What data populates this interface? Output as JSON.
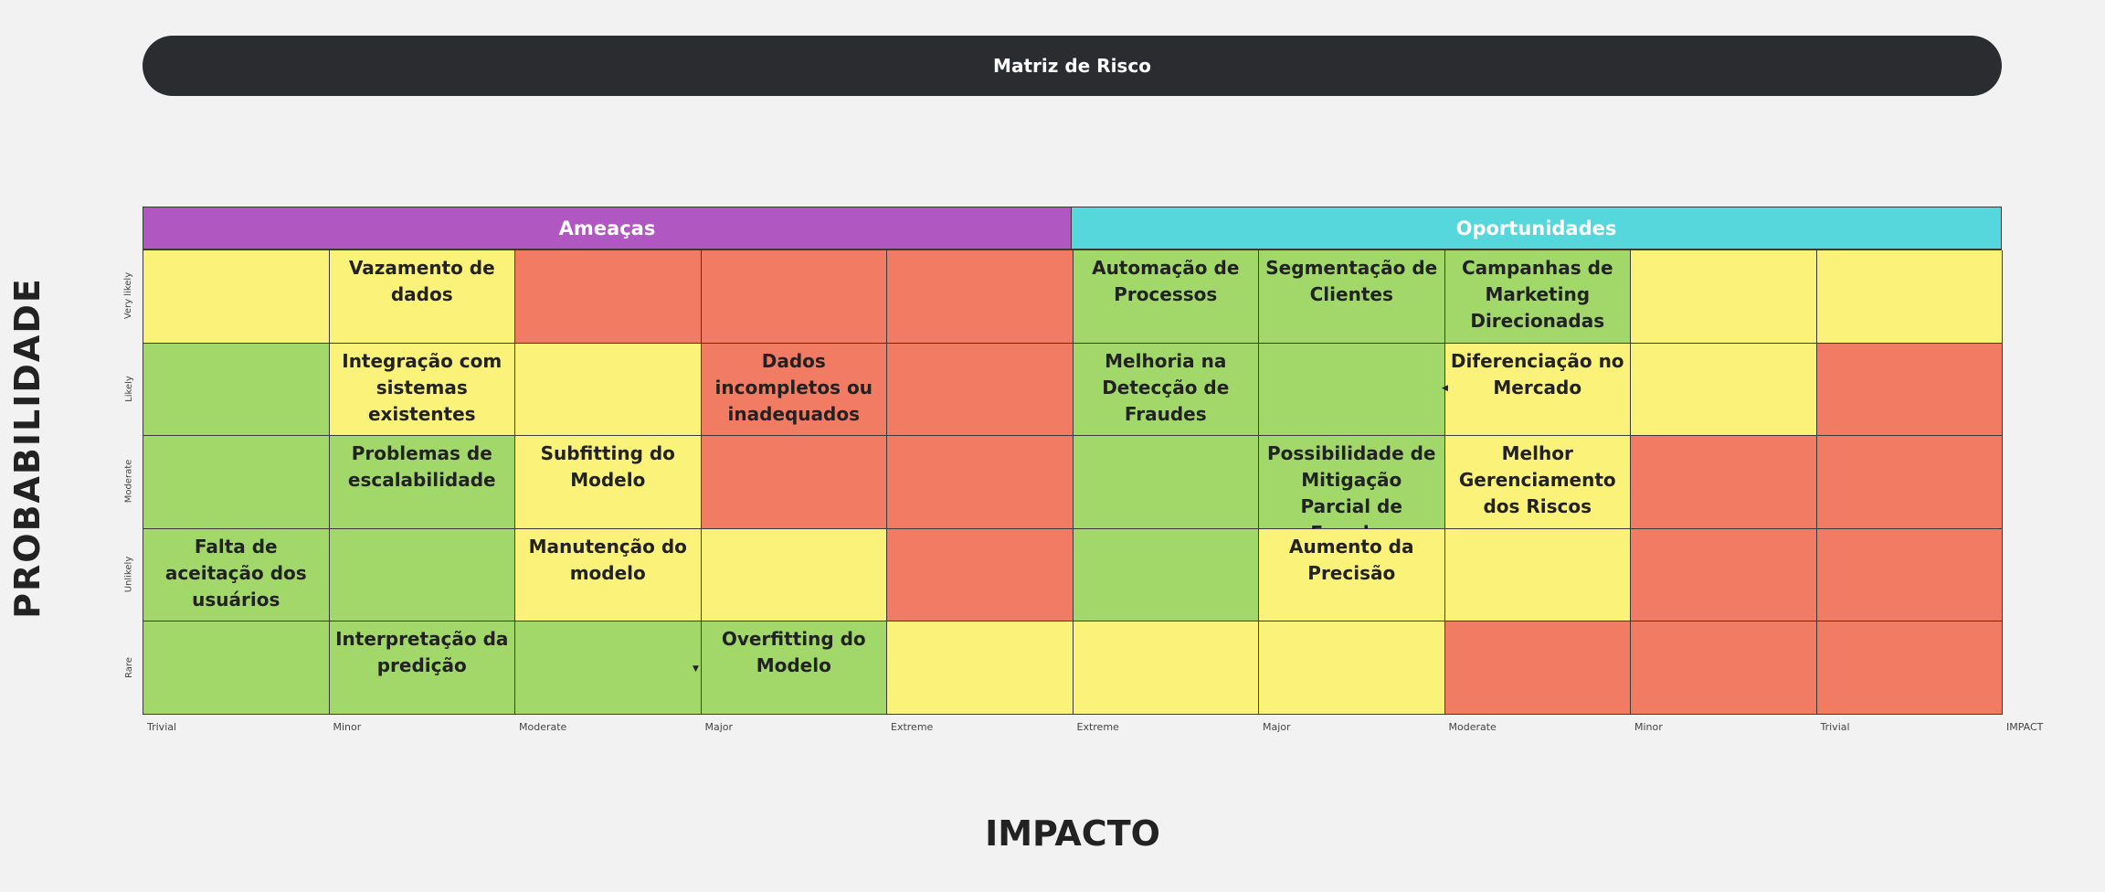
{
  "title": "Matriz de Risco",
  "sections": {
    "threats": "Ameaças",
    "opportunities": "Oportunidades"
  },
  "axis": {
    "y_title": "PROBABILIDADE",
    "x_title": "IMPACTO",
    "x_end_label": "IMPACT"
  },
  "y_levels": [
    "Very likely",
    "Likely",
    "Moderate",
    "Unlikely",
    "Rare"
  ],
  "x_labels": [
    "Trivial",
    "Minor",
    "Moderate",
    "Major",
    "Extreme",
    "Extreme",
    "Major",
    "Moderate",
    "Minor",
    "Trivial"
  ],
  "colors": {
    "green": "#a2d86a",
    "yellow": "#fbf27a",
    "red": "#f27b64",
    "threats": "#b057c2",
    "opportunities": "#55d7dc",
    "title_bar": "#2b2c30"
  },
  "rows": [
    {
      "cells": [
        {
          "color": "yellow",
          "text": ""
        },
        {
          "color": "yellow",
          "text": "Vazamento de dados"
        },
        {
          "color": "red",
          "text": ""
        },
        {
          "color": "red",
          "text": ""
        },
        {
          "color": "red",
          "text": ""
        },
        {
          "color": "green",
          "text": "Automação de Processos"
        },
        {
          "color": "green",
          "text": "Segmentação de Clientes"
        },
        {
          "color": "green",
          "text": "Campanhas de Marketing Direcionadas"
        },
        {
          "color": "yellow",
          "text": ""
        },
        {
          "color": "yellow",
          "text": ""
        }
      ]
    },
    {
      "cells": [
        {
          "color": "green",
          "text": ""
        },
        {
          "color": "yellow",
          "text": "Integração com sistemas existentes"
        },
        {
          "color": "yellow",
          "text": ""
        },
        {
          "color": "red",
          "text": "Dados incompletos ou inadequados"
        },
        {
          "color": "red",
          "text": ""
        },
        {
          "color": "green",
          "text": "Melhoria na Detecção de Fraudes"
        },
        {
          "color": "green",
          "text": ""
        },
        {
          "color": "yellow",
          "text": "Diferenciação no Mercado"
        },
        {
          "color": "yellow",
          "text": ""
        },
        {
          "color": "red",
          "text": ""
        }
      ]
    },
    {
      "cells": [
        {
          "color": "green",
          "text": ""
        },
        {
          "color": "green",
          "text": "Problemas de escalabilidade"
        },
        {
          "color": "yellow",
          "text": "Subfitting do Modelo"
        },
        {
          "color": "red",
          "text": ""
        },
        {
          "color": "red",
          "text": ""
        },
        {
          "color": "green",
          "text": ""
        },
        {
          "color": "green",
          "text": "Possibilidade de Mitigação Parcial de Fraudes"
        },
        {
          "color": "yellow",
          "text": "Melhor Gerenciamento dos Riscos"
        },
        {
          "color": "red",
          "text": ""
        },
        {
          "color": "red",
          "text": ""
        }
      ]
    },
    {
      "cells": [
        {
          "color": "green",
          "text": "Falta de aceitação dos usuários"
        },
        {
          "color": "green",
          "text": ""
        },
        {
          "color": "yellow",
          "text": "Manutenção do modelo"
        },
        {
          "color": "yellow",
          "text": ""
        },
        {
          "color": "red",
          "text": ""
        },
        {
          "color": "green",
          "text": ""
        },
        {
          "color": "yellow",
          "text": "Aumento da Precisão"
        },
        {
          "color": "yellow",
          "text": ""
        },
        {
          "color": "red",
          "text": ""
        },
        {
          "color": "red",
          "text": ""
        }
      ]
    },
    {
      "cells": [
        {
          "color": "green",
          "text": ""
        },
        {
          "color": "green",
          "text": "Interpretação da predição"
        },
        {
          "color": "green",
          "text": ""
        },
        {
          "color": "green",
          "text": "Overfitting do Modelo"
        },
        {
          "color": "yellow",
          "text": ""
        },
        {
          "color": "yellow",
          "text": ""
        },
        {
          "color": "yellow",
          "text": ""
        },
        {
          "color": "red",
          "text": ""
        },
        {
          "color": "red",
          "text": ""
        },
        {
          "color": "red",
          "text": ""
        }
      ]
    }
  ]
}
